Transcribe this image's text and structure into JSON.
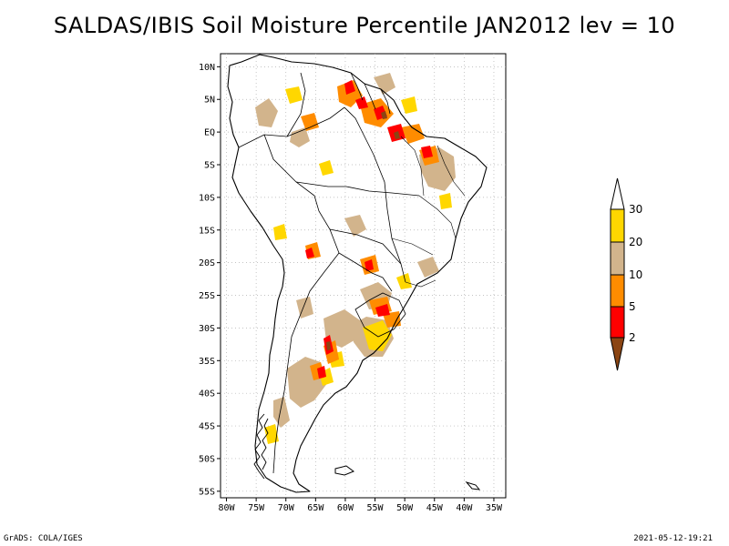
{
  "title": "SALDAS/IBIS Soil Moisture Percentile JAN2012 lev = 10",
  "footer": {
    "left": "GrADS: COLA/IGES",
    "right": "2021-05-12-19:21"
  },
  "axes": {
    "lat_labels": [
      "10N",
      "5N",
      "EQ",
      "5S",
      "10S",
      "15S",
      "20S",
      "25S",
      "30S",
      "35S",
      "40S",
      "45S",
      "50S",
      "55S"
    ],
    "lat_values": [
      10,
      5,
      0,
      -5,
      -10,
      -15,
      -20,
      -25,
      -30,
      -35,
      -40,
      -45,
      -50,
      -55
    ],
    "lon_labels": [
      "80W",
      "75W",
      "70W",
      "65W",
      "60W",
      "55W",
      "50W",
      "45W",
      "40W",
      "35W"
    ],
    "lon_values": [
      -80,
      -75,
      -70,
      -65,
      -60,
      -55,
      -50,
      -45,
      -40,
      -35
    ],
    "lon_range": [
      -81,
      -33
    ],
    "lat_range": [
      -56,
      12
    ]
  },
  "legend": {
    "labels": [
      "2",
      "5",
      "10",
      "20",
      "30"
    ],
    "colors": {
      "below_2": "#8b4513",
      "2_to_5": "#ff0000",
      "5_to_10": "#ff8c00",
      "10_to_20": "#d2b48c",
      "20_to_30": "#ffd700",
      "above_30": "#ffffff"
    }
  },
  "colors": {
    "coast": "#000000",
    "border": "#000000",
    "grid": "#b0b0b0"
  }
}
